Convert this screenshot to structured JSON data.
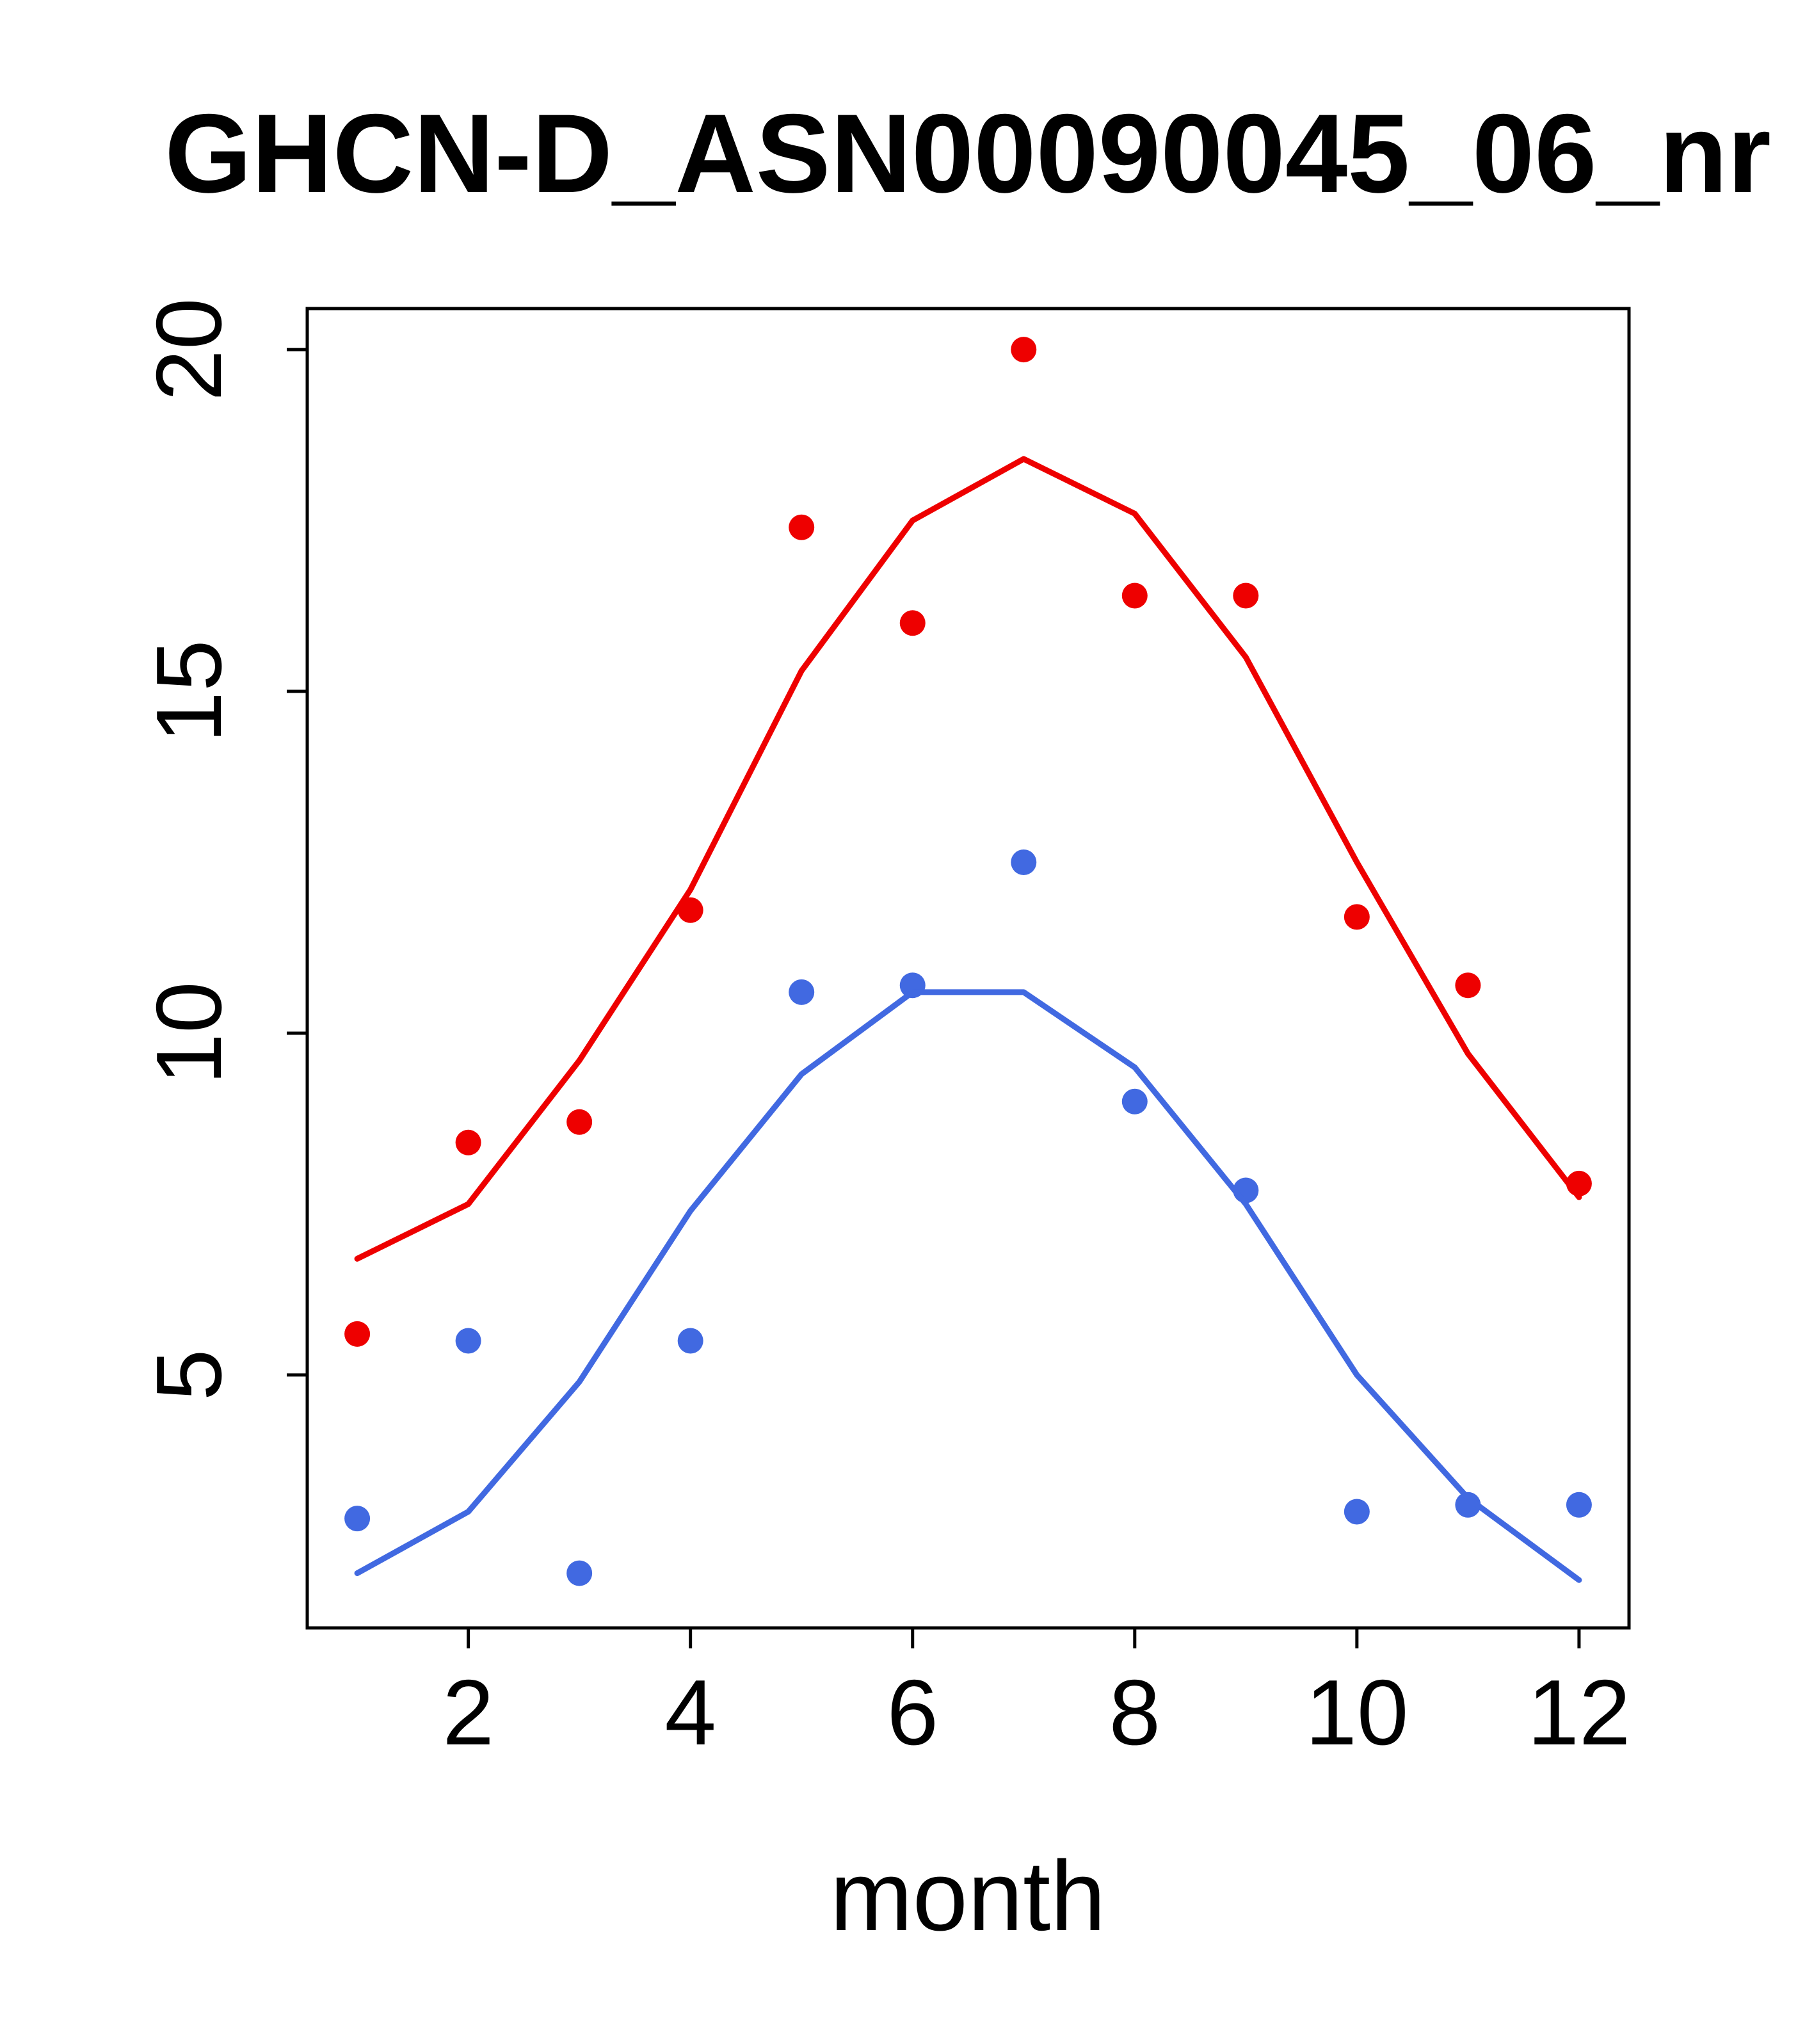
{
  "title": "GHCN-D_ASN00090045_06_nr",
  "chart_data": {
    "type": "scatter",
    "title": "GHCN-D_ASN00090045_06_nr",
    "xlabel": "month",
    "ylabel": "",
    "x": [
      1,
      2,
      3,
      4,
      5,
      6,
      7,
      8,
      9,
      10,
      11,
      12
    ],
    "xticks": [
      2,
      4,
      6,
      8,
      10,
      12
    ],
    "yticks": [
      5,
      10,
      15,
      20
    ],
    "xlim": [
      0.55,
      12.45
    ],
    "ylim": [
      1.3,
      20.6
    ],
    "grid": false,
    "legend": "none",
    "colors": {
      "red_series": "#EE0000",
      "blue_series": "#4169E1",
      "axis": "#000000"
    },
    "series": [
      {
        "name": "red-points",
        "kind": "points",
        "color": "#EE0000",
        "values": [
          5.6,
          8.4,
          8.7,
          11.8,
          17.4,
          16.0,
          20.0,
          16.4,
          16.4,
          11.7,
          10.7,
          7.8
        ]
      },
      {
        "name": "red-smooth-line",
        "kind": "line",
        "color": "#EE0000",
        "values": [
          6.7,
          7.5,
          9.6,
          12.1,
          15.3,
          17.5,
          18.4,
          17.6,
          15.5,
          12.5,
          9.7,
          7.6
        ]
      },
      {
        "name": "blue-points",
        "kind": "points",
        "color": "#4169E1",
        "values": [
          2.9,
          5.5,
          2.1,
          5.5,
          10.6,
          10.7,
          12.5,
          9.0,
          7.7,
          3.0,
          3.1,
          3.1
        ]
      },
      {
        "name": "blue-smooth-line",
        "kind": "line",
        "color": "#4169E1",
        "values": [
          2.1,
          3.0,
          4.9,
          7.4,
          9.4,
          10.6,
          10.6,
          9.5,
          7.5,
          5.0,
          3.2,
          2.0
        ]
      }
    ]
  }
}
